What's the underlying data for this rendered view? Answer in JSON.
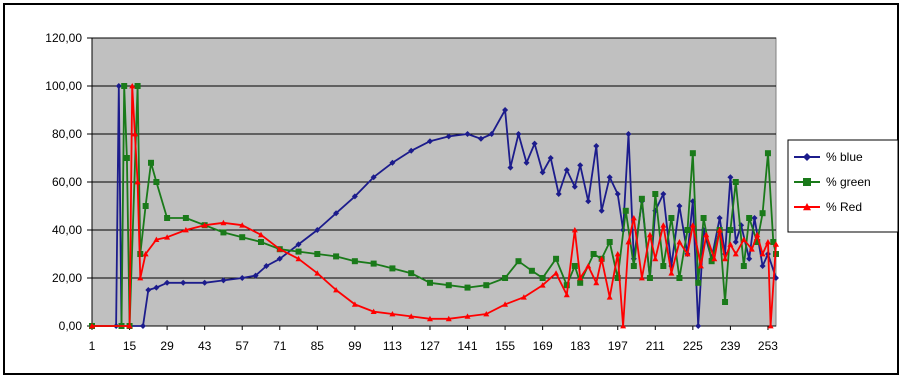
{
  "chart_data": {
    "type": "line",
    "title": "",
    "xlabel": "",
    "ylabel": "",
    "ylim": [
      0,
      120
    ],
    "xlim": [
      1,
      256
    ],
    "y_ticks": [
      0,
      20,
      40,
      60,
      80,
      100,
      120
    ],
    "y_tick_labels": [
      "0,00",
      "20,00",
      "40,00",
      "60,00",
      "80,00",
      "100,00",
      "120,00"
    ],
    "x_tick_labels": [
      "1",
      "15",
      "29",
      "43",
      "57",
      "71",
      "85",
      "99",
      "113",
      "127",
      "141",
      "155",
      "169",
      "183",
      "197",
      "211",
      "225",
      "239",
      "253"
    ],
    "x_ticks": [
      1,
      15,
      29,
      43,
      57,
      71,
      85,
      99,
      113,
      127,
      141,
      155,
      169,
      183,
      197,
      211,
      225,
      239,
      253
    ],
    "grid": "horizontal",
    "legend_position": "right",
    "plot_background": "#c0c0c0",
    "series": [
      {
        "name": "% blue",
        "color": "#1c1c8c",
        "marker": "diamond",
        "points": [
          [
            1,
            0
          ],
          [
            10,
            0
          ],
          [
            11,
            100
          ],
          [
            12,
            0
          ],
          [
            20,
            0
          ],
          [
            22,
            15
          ],
          [
            25,
            16
          ],
          [
            29,
            18
          ],
          [
            35,
            18
          ],
          [
            43,
            18
          ],
          [
            50,
            19
          ],
          [
            57,
            20
          ],
          [
            62,
            21
          ],
          [
            66,
            25
          ],
          [
            71,
            28
          ],
          [
            78,
            34
          ],
          [
            85,
            40
          ],
          [
            92,
            47
          ],
          [
            99,
            54
          ],
          [
            106,
            62
          ],
          [
            113,
            68
          ],
          [
            120,
            73
          ],
          [
            127,
            77
          ],
          [
            134,
            79
          ],
          [
            141,
            80
          ],
          [
            146,
            78
          ],
          [
            150,
            80
          ],
          [
            155,
            90
          ],
          [
            157,
            66
          ],
          [
            160,
            80
          ],
          [
            163,
            68
          ],
          [
            166,
            76
          ],
          [
            169,
            64
          ],
          [
            172,
            70
          ],
          [
            175,
            55
          ],
          [
            178,
            65
          ],
          [
            181,
            58
          ],
          [
            183,
            67
          ],
          [
            186,
            52
          ],
          [
            189,
            75
          ],
          [
            191,
            48
          ],
          [
            194,
            62
          ],
          [
            197,
            55
          ],
          [
            199,
            40
          ],
          [
            201,
            80
          ],
          [
            203,
            28
          ],
          [
            206,
            52
          ],
          [
            209,
            20
          ],
          [
            211,
            48
          ],
          [
            214,
            55
          ],
          [
            217,
            25
          ],
          [
            220,
            50
          ],
          [
            223,
            30
          ],
          [
            225,
            52
          ],
          [
            227,
            0
          ],
          [
            229,
            40
          ],
          [
            232,
            28
          ],
          [
            235,
            45
          ],
          [
            237,
            30
          ],
          [
            239,
            62
          ],
          [
            241,
            35
          ],
          [
            243,
            42
          ],
          [
            246,
            28
          ],
          [
            248,
            45
          ],
          [
            251,
            25
          ],
          [
            253,
            30
          ],
          [
            256,
            20
          ]
        ]
      },
      {
        "name": "% green",
        "color": "#1a7a1a",
        "marker": "square",
        "points": [
          [
            1,
            0
          ],
          [
            12,
            0
          ],
          [
            13,
            100
          ],
          [
            14,
            70
          ],
          [
            15,
            0
          ],
          [
            18,
            100
          ],
          [
            19,
            30
          ],
          [
            21,
            50
          ],
          [
            23,
            68
          ],
          [
            25,
            60
          ],
          [
            29,
            45
          ],
          [
            36,
            45
          ],
          [
            43,
            42
          ],
          [
            50,
            39
          ],
          [
            57,
            37
          ],
          [
            64,
            35
          ],
          [
            71,
            32
          ],
          [
            78,
            31
          ],
          [
            85,
            30
          ],
          [
            92,
            29
          ],
          [
            99,
            27
          ],
          [
            106,
            26
          ],
          [
            113,
            24
          ],
          [
            120,
            22
          ],
          [
            127,
            18
          ],
          [
            134,
            17
          ],
          [
            141,
            16
          ],
          [
            148,
            17
          ],
          [
            155,
            20
          ],
          [
            160,
            27
          ],
          [
            165,
            23
          ],
          [
            169,
            20
          ],
          [
            174,
            28
          ],
          [
            178,
            17
          ],
          [
            181,
            25
          ],
          [
            183,
            18
          ],
          [
            188,
            30
          ],
          [
            191,
            28
          ],
          [
            194,
            35
          ],
          [
            197,
            20
          ],
          [
            200,
            48
          ],
          [
            203,
            25
          ],
          [
            206,
            53
          ],
          [
            209,
            20
          ],
          [
            211,
            55
          ],
          [
            214,
            25
          ],
          [
            217,
            45
          ],
          [
            220,
            20
          ],
          [
            223,
            40
          ],
          [
            225,
            72
          ],
          [
            227,
            18
          ],
          [
            229,
            45
          ],
          [
            232,
            27
          ],
          [
            235,
            40
          ],
          [
            237,
            10
          ],
          [
            239,
            40
          ],
          [
            241,
            60
          ],
          [
            244,
            25
          ],
          [
            246,
            45
          ],
          [
            249,
            35
          ],
          [
            251,
            47
          ],
          [
            253,
            72
          ],
          [
            255,
            35
          ],
          [
            256,
            30
          ]
        ]
      },
      {
        "name": "% Red",
        "color": "#ff0000",
        "marker": "triangle",
        "points": [
          [
            1,
            0
          ],
          [
            15,
            0
          ],
          [
            16,
            100
          ],
          [
            17,
            80
          ],
          [
            18,
            60
          ],
          [
            19,
            20
          ],
          [
            21,
            30
          ],
          [
            25,
            36
          ],
          [
            29,
            37
          ],
          [
            36,
            40
          ],
          [
            43,
            42
          ],
          [
            50,
            43
          ],
          [
            57,
            42
          ],
          [
            64,
            38
          ],
          [
            71,
            32
          ],
          [
            78,
            28
          ],
          [
            85,
            22
          ],
          [
            92,
            15
          ],
          [
            99,
            9
          ],
          [
            106,
            6
          ],
          [
            113,
            5
          ],
          [
            120,
            4
          ],
          [
            127,
            3
          ],
          [
            134,
            3
          ],
          [
            141,
            4
          ],
          [
            148,
            5
          ],
          [
            155,
            9
          ],
          [
            162,
            12
          ],
          [
            169,
            17
          ],
          [
            174,
            22
          ],
          [
            178,
            13
          ],
          [
            181,
            40
          ],
          [
            183,
            20
          ],
          [
            186,
            25
          ],
          [
            189,
            18
          ],
          [
            191,
            28
          ],
          [
            194,
            12
          ],
          [
            197,
            30
          ],
          [
            199,
            0
          ],
          [
            201,
            35
          ],
          [
            203,
            45
          ],
          [
            206,
            20
          ],
          [
            209,
            38
          ],
          [
            211,
            28
          ],
          [
            214,
            42
          ],
          [
            217,
            22
          ],
          [
            220,
            35
          ],
          [
            223,
            30
          ],
          [
            225,
            42
          ],
          [
            228,
            25
          ],
          [
            230,
            38
          ],
          [
            233,
            28
          ],
          [
            235,
            40
          ],
          [
            237,
            28
          ],
          [
            239,
            34
          ],
          [
            241,
            30
          ],
          [
            244,
            36
          ],
          [
            247,
            32
          ],
          [
            249,
            38
          ],
          [
            251,
            30
          ],
          [
            253,
            35
          ],
          [
            254,
            0
          ],
          [
            256,
            34
          ]
        ]
      }
    ]
  }
}
